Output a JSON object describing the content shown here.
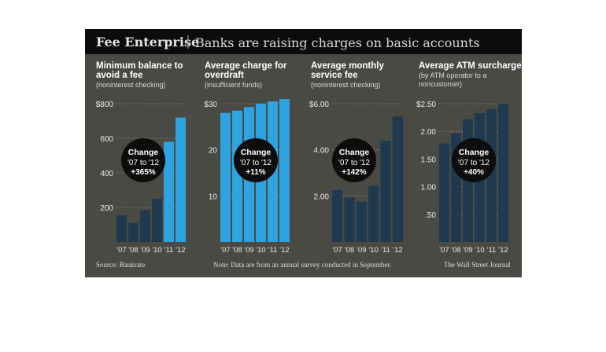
{
  "header": {
    "title": "Fee Enterprise",
    "separator": "|",
    "subtitle": "Banks are raising charges on basic accounts"
  },
  "footer": {
    "source": "Source: Bankrate",
    "note": "Note: Data are from an annual survey conducted in September.",
    "credit": "The Wall Street Journal"
  },
  "colors": {
    "bar": "#1f3a4f",
    "bar_highlight": "#2fa3e0",
    "background": "#4a4a45",
    "circle": "#0d0d0d"
  },
  "chart_data": [
    {
      "type": "bar",
      "title_lines": [
        "Minimum balance to",
        "avoid a fee"
      ],
      "subtitle_lines": [
        "(noninterest checking)"
      ],
      "categories": [
        "'07",
        "'08",
        "'09",
        "'10",
        "'11",
        "'12"
      ],
      "values": [
        155,
        110,
        185,
        250,
        580,
        720
      ],
      "ylim": [
        0,
        800
      ],
      "yticks": [
        0,
        200,
        400,
        600,
        800
      ],
      "ytick_labels": [
        "",
        "200",
        "400",
        "600",
        "$800"
      ],
      "change": {
        "line1": "Change",
        "line2": "'07 to '12",
        "line3": "+365%"
      }
    },
    {
      "type": "bar",
      "title_lines": [
        "Average charge for",
        "overdraft"
      ],
      "subtitle_lines": [
        "(insufficient funds)"
      ],
      "categories": [
        "'07",
        "'08",
        "'09",
        "'10",
        "'11",
        "'12"
      ],
      "values": [
        28.0,
        28.5,
        29.3,
        30.0,
        30.5,
        31.0
      ],
      "ylim": [
        0,
        30
      ],
      "yticks": [
        0,
        10,
        20,
        30
      ],
      "ytick_labels": [
        "",
        "10",
        "20",
        "$30"
      ],
      "change": {
        "line1": "Change",
        "line2": "'07 to '12",
        "line3": "+11%"
      }
    },
    {
      "type": "bar",
      "title_lines": [
        "Average monthly",
        "service fee"
      ],
      "subtitle_lines": [
        "(noninterest checking)"
      ],
      "categories": [
        "'07",
        "'08",
        "'09",
        "'10",
        "'11",
        "'12"
      ],
      "values": [
        2.25,
        1.95,
        1.75,
        2.45,
        4.4,
        5.45
      ],
      "ylim": [
        0,
        6
      ],
      "yticks": [
        0,
        2,
        4,
        6
      ],
      "ytick_labels": [
        "",
        "2.00",
        "4.00",
        "$6.00"
      ],
      "change": {
        "line1": "Change",
        "line2": "'07 to '12",
        "line3": "+142%"
      }
    },
    {
      "type": "bar",
      "title_lines": [
        "Average ATM surcharge"
      ],
      "subtitle_lines": [
        "(by ATM operator to a",
        "noncustomer)"
      ],
      "categories": [
        "'07",
        "'08",
        "'09",
        "'10",
        "'11",
        "'12"
      ],
      "values": [
        1.78,
        1.96,
        2.22,
        2.33,
        2.4,
        2.5
      ],
      "ylim": [
        0,
        2.5
      ],
      "yticks": [
        0,
        0.5,
        1.0,
        1.5,
        2.0,
        2.5
      ],
      "ytick_labels": [
        "",
        ".50",
        "1.00",
        "1.50",
        "2.00",
        "$2.50"
      ],
      "change": {
        "line1": "Change",
        "line2": "'07 to '12",
        "line3": "+40%"
      }
    }
  ]
}
